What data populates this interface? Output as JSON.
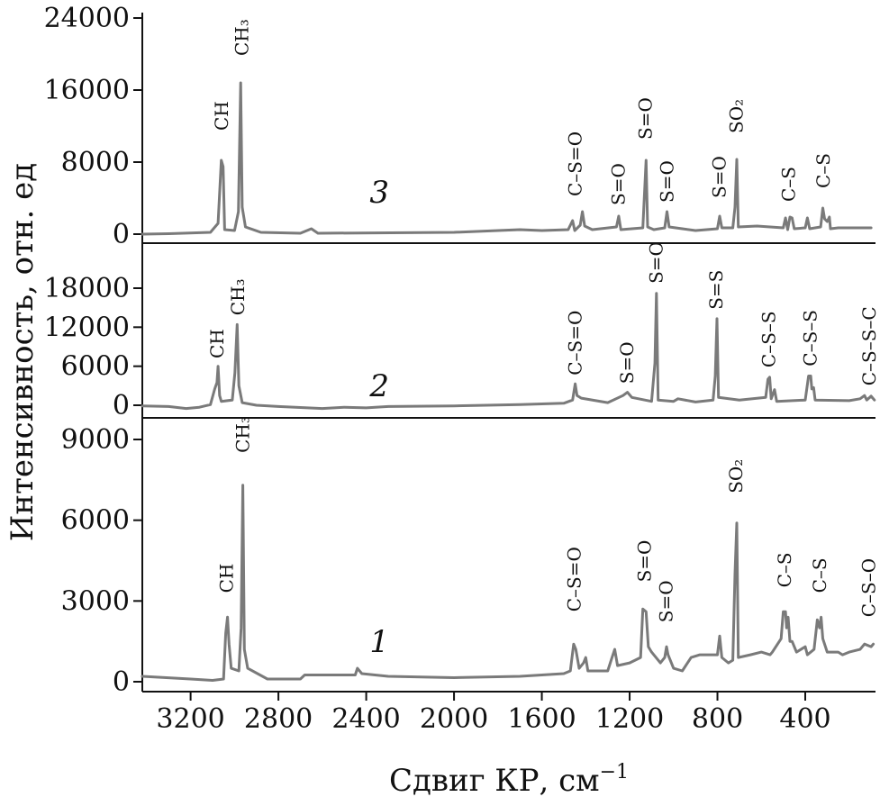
{
  "chart_data": {
    "type": "line",
    "xlabel": "Сдвиг КР, см",
    "xlabel_sup": "−1",
    "ylabel": "Интенсивность, отн. ед",
    "x_reversed": true,
    "xlim": [
      3420,
      80
    ],
    "x_ticks": [
      3200,
      2800,
      2400,
      2000,
      1600,
      1200,
      800,
      400
    ],
    "series_color": "#7a7a7a",
    "panels": [
      {
        "name": "3",
        "ylim": [
          0,
          24000
        ],
        "y_ticks": [
          0,
          8000,
          16000,
          24000
        ],
        "curve_label": {
          "text": "3",
          "x": 2340,
          "y": 3500
        },
        "points": [
          [
            3420,
            0
          ],
          [
            3300,
            50
          ],
          [
            3110,
            200
          ],
          [
            3075,
            1200
          ],
          [
            3060,
            8200
          ],
          [
            3052,
            7500
          ],
          [
            3045,
            500
          ],
          [
            3000,
            400
          ],
          [
            2982,
            2500
          ],
          [
            2972,
            16800
          ],
          [
            2965,
            3000
          ],
          [
            2950,
            800
          ],
          [
            2880,
            200
          ],
          [
            2700,
            100
          ],
          [
            2650,
            600
          ],
          [
            2620,
            100
          ],
          [
            2000,
            200
          ],
          [
            1700,
            500
          ],
          [
            1600,
            400
          ],
          [
            1480,
            500
          ],
          [
            1460,
            1500
          ],
          [
            1450,
            400
          ],
          [
            1425,
            1000
          ],
          [
            1415,
            2500
          ],
          [
            1405,
            900
          ],
          [
            1370,
            500
          ],
          [
            1260,
            800
          ],
          [
            1250,
            2000
          ],
          [
            1240,
            500
          ],
          [
            1140,
            700
          ],
          [
            1125,
            8200
          ],
          [
            1118,
            800
          ],
          [
            1090,
            500
          ],
          [
            1040,
            700
          ],
          [
            1030,
            2500
          ],
          [
            1020,
            800
          ],
          [
            960,
            600
          ],
          [
            900,
            400
          ],
          [
            800,
            600
          ],
          [
            790,
            2000
          ],
          [
            780,
            700
          ],
          [
            730,
            700
          ],
          [
            720,
            3000
          ],
          [
            712,
            8300
          ],
          [
            705,
            800
          ],
          [
            620,
            900
          ],
          [
            500,
            700
          ],
          [
            490,
            1800
          ],
          [
            480,
            500
          ],
          [
            470,
            1900
          ],
          [
            460,
            1800
          ],
          [
            450,
            600
          ],
          [
            400,
            700
          ],
          [
            390,
            1800
          ],
          [
            380,
            600
          ],
          [
            330,
            800
          ],
          [
            320,
            2900
          ],
          [
            312,
            1700
          ],
          [
            300,
            1400
          ],
          [
            290,
            1900
          ],
          [
            285,
            600
          ],
          [
            250,
            700
          ],
          [
            100,
            700
          ]
        ],
        "peak_labels": [
          {
            "text": "CH",
            "x": 3058,
            "y": 11500
          },
          {
            "text": "CH₃",
            "x": 2966,
            "y": 19800
          },
          {
            "text": "C–S=O",
            "x": 1448,
            "y": 4200
          },
          {
            "text": "S=O",
            "x": 1252,
            "y": 3200
          },
          {
            "text": "S=O",
            "x": 1128,
            "y": 10500
          },
          {
            "text": "S=O",
            "x": 1030,
            "y": 3500
          },
          {
            "text": "S=O",
            "x": 792,
            "y": 4000
          },
          {
            "text": "SO₂",
            "x": 714,
            "y": 11200
          },
          {
            "text": "C–S",
            "x": 475,
            "y": 3600
          },
          {
            "text": "C–S",
            "x": 318,
            "y": 5100
          }
        ]
      },
      {
        "name": "2",
        "ylim": [
          0,
          22000
        ],
        "y_ticks": [
          0,
          6000,
          12000,
          18000
        ],
        "curve_label": {
          "text": "2",
          "x": 2340,
          "y": 1400
        },
        "points": [
          [
            3420,
            -100
          ],
          [
            3300,
            -200
          ],
          [
            3220,
            -500
          ],
          [
            3160,
            -300
          ],
          [
            3110,
            100
          ],
          [
            3090,
            2500
          ],
          [
            3080,
            3500
          ],
          [
            3075,
            6000
          ],
          [
            3068,
            1500
          ],
          [
            3060,
            600
          ],
          [
            3010,
            800
          ],
          [
            2998,
            5000
          ],
          [
            2988,
            12400
          ],
          [
            2980,
            3000
          ],
          [
            2965,
            400
          ],
          [
            2900,
            0
          ],
          [
            2800,
            -200
          ],
          [
            2600,
            -500
          ],
          [
            2500,
            -300
          ],
          [
            2400,
            -400
          ],
          [
            2300,
            -200
          ],
          [
            2000,
            -100
          ],
          [
            1700,
            100
          ],
          [
            1500,
            300
          ],
          [
            1460,
            800
          ],
          [
            1448,
            3300
          ],
          [
            1440,
            1500
          ],
          [
            1420,
            1100
          ],
          [
            1300,
            400
          ],
          [
            1230,
            1500
          ],
          [
            1210,
            2000
          ],
          [
            1190,
            1200
          ],
          [
            1100,
            600
          ],
          [
            1085,
            6500
          ],
          [
            1078,
            17200
          ],
          [
            1070,
            800
          ],
          [
            1000,
            600
          ],
          [
            980,
            1000
          ],
          [
            900,
            500
          ],
          [
            820,
            800
          ],
          [
            810,
            4500
          ],
          [
            802,
            13300
          ],
          [
            795,
            1200
          ],
          [
            700,
            800
          ],
          [
            580,
            1200
          ],
          [
            570,
            4000
          ],
          [
            562,
            4300
          ],
          [
            555,
            1000
          ],
          [
            540,
            2400
          ],
          [
            530,
            600
          ],
          [
            400,
            800
          ],
          [
            385,
            4500
          ],
          [
            375,
            4500
          ],
          [
            370,
            2500
          ],
          [
            362,
            2700
          ],
          [
            355,
            800
          ],
          [
            200,
            700
          ],
          [
            150,
            1000
          ],
          [
            130,
            1500
          ],
          [
            120,
            800
          ],
          [
            100,
            1400
          ],
          [
            85,
            800
          ]
        ],
        "peak_labels": [
          {
            "text": "CH",
            "x": 3080,
            "y": 7200
          },
          {
            "text": "CH₃",
            "x": 2986,
            "y": 13800
          },
          {
            "text": "C–S=O",
            "x": 1448,
            "y": 4600
          },
          {
            "text": "S=O",
            "x": 1212,
            "y": 3300
          },
          {
            "text": "S=O",
            "x": 1080,
            "y": 18700
          },
          {
            "text": "S=S",
            "x": 806,
            "y": 14700
          },
          {
            "text": "C–S–S",
            "x": 566,
            "y": 5800
          },
          {
            "text": "C–S–S",
            "x": 378,
            "y": 6000
          },
          {
            "text": "C–S–S–C",
            "x": 108,
            "y": 3000
          }
        ]
      },
      {
        "name": "1",
        "ylim": [
          0,
          12000
        ],
        "y_ticks": [
          0,
          3000,
          6000,
          9000
        ],
        "curve_label": {
          "text": "1",
          "x": 2340,
          "y": 1100
        },
        "points": [
          [
            3420,
            200
          ],
          [
            3200,
            100
          ],
          [
            3100,
            50
          ],
          [
            3050,
            100
          ],
          [
            3040,
            1800
          ],
          [
            3032,
            2400
          ],
          [
            3025,
            1400
          ],
          [
            3015,
            500
          ],
          [
            2980,
            400
          ],
          [
            2970,
            2000
          ],
          [
            2962,
            7300
          ],
          [
            2955,
            1200
          ],
          [
            2940,
            500
          ],
          [
            2850,
            100
          ],
          [
            2700,
            100
          ],
          [
            2680,
            250
          ],
          [
            2450,
            250
          ],
          [
            2440,
            500
          ],
          [
            2420,
            300
          ],
          [
            2300,
            200
          ],
          [
            2000,
            150
          ],
          [
            1700,
            200
          ],
          [
            1500,
            300
          ],
          [
            1470,
            400
          ],
          [
            1455,
            1400
          ],
          [
            1445,
            1200
          ],
          [
            1430,
            500
          ],
          [
            1410,
            700
          ],
          [
            1400,
            900
          ],
          [
            1390,
            400
          ],
          [
            1300,
            400
          ],
          [
            1280,
            900
          ],
          [
            1268,
            1200
          ],
          [
            1255,
            600
          ],
          [
            1200,
            700
          ],
          [
            1150,
            900
          ],
          [
            1140,
            2700
          ],
          [
            1125,
            2600
          ],
          [
            1115,
            1300
          ],
          [
            1100,
            1100
          ],
          [
            1060,
            700
          ],
          [
            1040,
            900
          ],
          [
            1032,
            1300
          ],
          [
            1025,
            1000
          ],
          [
            1000,
            500
          ],
          [
            960,
            400
          ],
          [
            920,
            900
          ],
          [
            880,
            1000
          ],
          [
            800,
            1000
          ],
          [
            790,
            1700
          ],
          [
            780,
            900
          ],
          [
            750,
            700
          ],
          [
            730,
            800
          ],
          [
            720,
            4000
          ],
          [
            712,
            5900
          ],
          [
            705,
            900
          ],
          [
            650,
            1000
          ],
          [
            600,
            1100
          ],
          [
            560,
            1000
          ],
          [
            550,
            1100
          ],
          [
            510,
            1600
          ],
          [
            500,
            2600
          ],
          [
            490,
            2600
          ],
          [
            485,
            2000
          ],
          [
            478,
            2400
          ],
          [
            470,
            1500
          ],
          [
            460,
            1500
          ],
          [
            440,
            1100
          ],
          [
            400,
            1300
          ],
          [
            390,
            1000
          ],
          [
            360,
            1200
          ],
          [
            345,
            2300
          ],
          [
            335,
            2000
          ],
          [
            328,
            2400
          ],
          [
            320,
            1600
          ],
          [
            300,
            1100
          ],
          [
            250,
            1100
          ],
          [
            230,
            1000
          ],
          [
            200,
            1100
          ],
          [
            150,
            1200
          ],
          [
            130,
            1400
          ],
          [
            100,
            1300
          ],
          [
            90,
            1400
          ]
        ],
        "peak_labels": [
          {
            "text": "CH",
            "x": 3036,
            "y": 3300
          },
          {
            "text": "CH₃",
            "x": 2963,
            "y": 8500
          },
          {
            "text": "C–S=O",
            "x": 1452,
            "y": 2600
          },
          {
            "text": "S=O",
            "x": 1132,
            "y": 3700
          },
          {
            "text": "S=O",
            "x": 1033,
            "y": 2200
          },
          {
            "text": "SO₂",
            "x": 716,
            "y": 7000
          },
          {
            "text": "C–S",
            "x": 495,
            "y": 3500
          },
          {
            "text": "C–S",
            "x": 335,
            "y": 3300
          },
          {
            "text": "C–S–O",
            "x": 110,
            "y": 2400
          }
        ]
      }
    ]
  }
}
